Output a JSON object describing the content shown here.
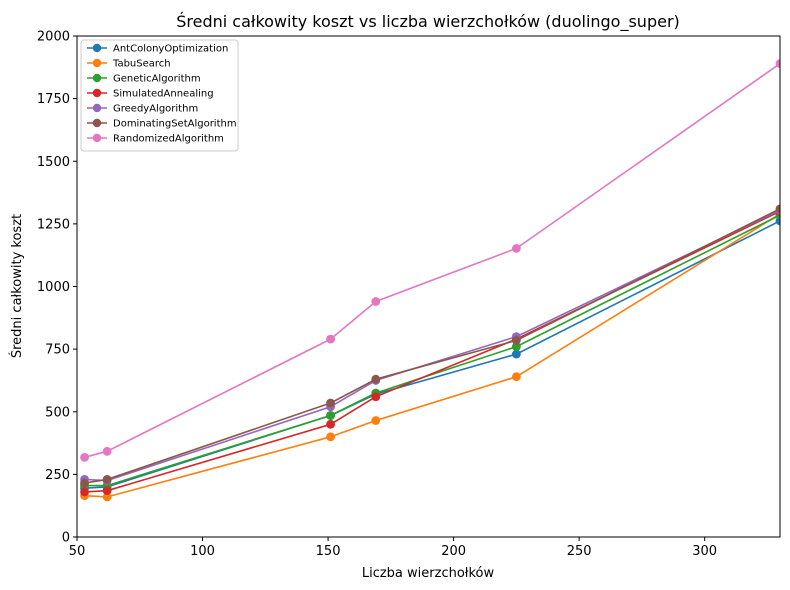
{
  "chart_data": {
    "type": "line",
    "title": "Średni całkowity koszt vs liczba wierzchołków (duolingo_super)",
    "xlabel": "Liczba wierzchołków",
    "ylabel": "Średni całkowity koszt",
    "xlim": [
      50,
      330
    ],
    "ylim": [
      0,
      2000
    ],
    "xticks": [
      50,
      100,
      150,
      200,
      250,
      300
    ],
    "yticks": [
      0,
      250,
      500,
      750,
      1000,
      1250,
      1500,
      1750,
      2000
    ],
    "grid": false,
    "legend_position": "top-left",
    "x": [
      53,
      62,
      151,
      169,
      225,
      330
    ],
    "series": [
      {
        "name": "AntColonyOptimization",
        "color": "#1f77b4",
        "values": [
          195,
          200,
          485,
          570,
          730,
          1262
        ]
      },
      {
        "name": "TabuSearch",
        "color": "#ff7f0e",
        "values": [
          165,
          160,
          400,
          465,
          640,
          1290
        ]
      },
      {
        "name": "GeneticAlgorithm",
        "color": "#2ca02c",
        "values": [
          205,
          205,
          485,
          575,
          760,
          1285
        ]
      },
      {
        "name": "SimulatedAnnealing",
        "color": "#d62728",
        "values": [
          180,
          185,
          450,
          560,
          790,
          1300
        ]
      },
      {
        "name": "GreedyAlgorithm",
        "color": "#9467bd",
        "values": [
          230,
          225,
          520,
          625,
          800,
          1305
        ]
      },
      {
        "name": "DominatingSetAlgorithm",
        "color": "#8c564b",
        "values": [
          215,
          230,
          535,
          630,
          785,
          1310
        ]
      },
      {
        "name": "RandomizedAlgorithm",
        "color": "#e377c2",
        "values": [
          318,
          342,
          790,
          940,
          1152,
          1890
        ]
      }
    ]
  }
}
